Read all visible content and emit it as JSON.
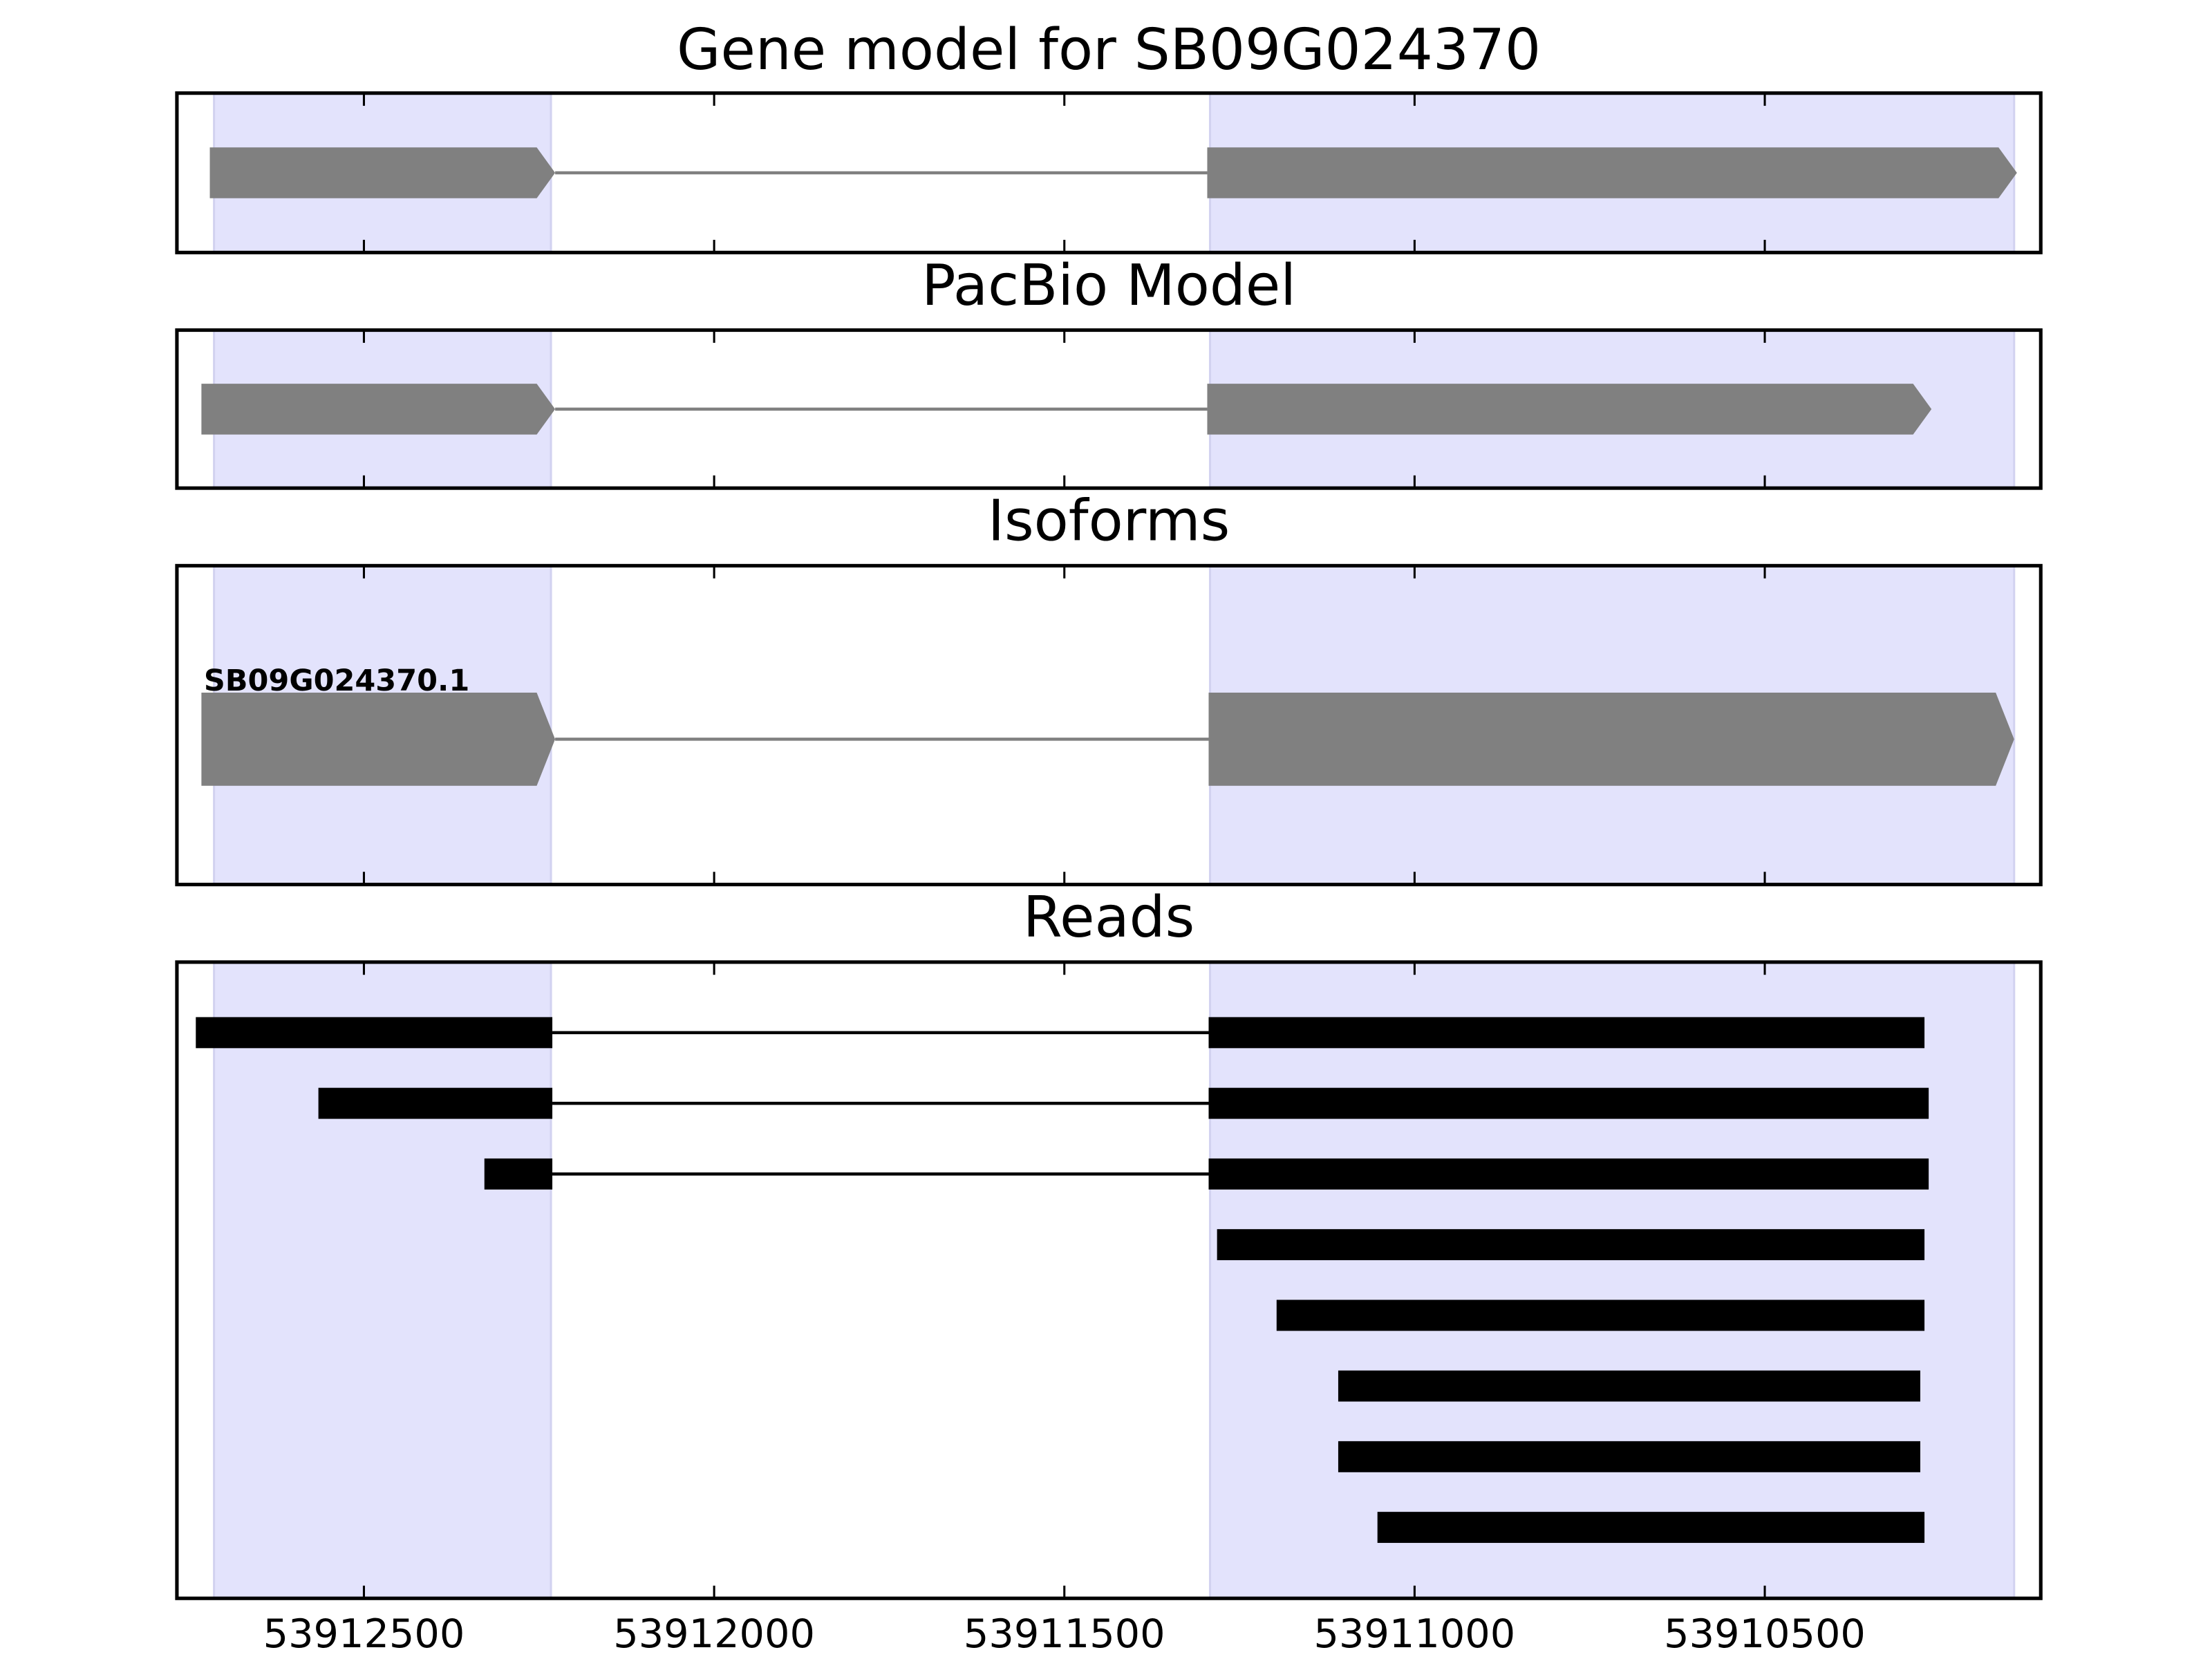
{
  "chart_data": [
    {
      "type": "gene",
      "title": "Gene model for SB09G024370",
      "xlim": [
        53912767,
        53910106
      ],
      "highlights": [
        [
          53912714,
          53912233
        ],
        [
          53911292,
          53910144
        ]
      ],
      "color": "#808080",
      "features": [
        {
          "exons": [
            [
              53912720,
              53912227
            ],
            [
              53911296,
              53910140
            ]
          ]
        }
      ]
    },
    {
      "type": "gene",
      "title": "PacBio Model",
      "xlim": [
        53912767,
        53910106
      ],
      "highlights": [
        [
          53912714,
          53912233
        ],
        [
          53911292,
          53910144
        ]
      ],
      "color": "#808080",
      "features": [
        {
          "exons": [
            [
              53912732,
              53912227
            ],
            [
              53911296,
              53910262
            ]
          ]
        }
      ]
    },
    {
      "type": "gene",
      "title": "Isoforms",
      "xlim": [
        53912767,
        53910106
      ],
      "highlights": [
        [
          53912714,
          53912233
        ],
        [
          53911292,
          53910144
        ]
      ],
      "color": "#808080",
      "features": [
        {
          "name": "SB09G024370.1",
          "exons": [
            [
              53912732,
              53912227
            ],
            [
              53911294,
              53910144
            ]
          ]
        }
      ]
    },
    {
      "type": "reads",
      "title": "Reads",
      "xlim": [
        53912767,
        53910106
      ],
      "xticks": [
        53912500,
        53912000,
        53911500,
        53911000,
        53910500
      ],
      "highlights": [
        [
          53912714,
          53912233
        ],
        [
          53911292,
          53910144
        ]
      ],
      "color": "#000000",
      "features": [
        {
          "exons": [
            [
              53912740,
              53912231
            ],
            [
              53911294,
              53910272
            ]
          ]
        },
        {
          "exons": [
            [
              53912565,
              53912231
            ],
            [
              53911294,
              53910266
            ]
          ]
        },
        {
          "exons": [
            [
              53912328,
              53912231
            ],
            [
              53911294,
              53910266
            ]
          ]
        },
        {
          "exons": [
            [
              53911282,
              53910272
            ]
          ]
        },
        {
          "exons": [
            [
              53911197,
              53910272
            ]
          ]
        },
        {
          "exons": [
            [
              53911109,
              53910278
            ]
          ]
        },
        {
          "exons": [
            [
              53911109,
              53910278
            ]
          ]
        },
        {
          "exons": [
            [
              53911053,
              53910272
            ]
          ]
        }
      ]
    }
  ]
}
